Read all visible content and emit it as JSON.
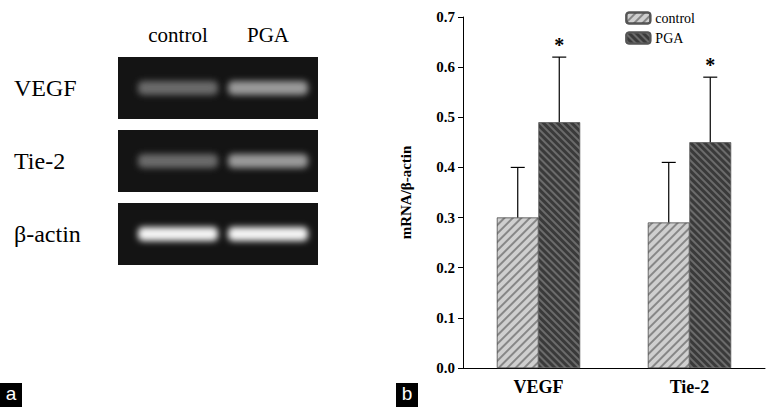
{
  "panel_labels": [
    "a",
    "b"
  ],
  "gel": {
    "columns": [
      "control",
      "PGA"
    ],
    "rows": [
      "VEGF",
      "Tie-2",
      "β-actin"
    ]
  },
  "chart_data": {
    "type": "bar",
    "categories": [
      "VEGF",
      "Tie-2"
    ],
    "y_label": "mRNA/β-actin",
    "series": [
      {
        "name": "control",
        "color": "#cfcfcf",
        "values": [
          0.3,
          0.29
        ],
        "errors": [
          0.1,
          0.12
        ]
      },
      {
        "name": "PGA",
        "color": "#3a3a3a",
        "values": [
          0.49,
          0.45
        ],
        "errors": [
          0.13,
          0.13
        ]
      }
    ],
    "annotations": [
      {
        "series": "PGA",
        "category": "VEGF",
        "text": "*"
      },
      {
        "series": "PGA",
        "category": "Tie-2",
        "text": "*"
      }
    ],
    "ylim": [
      0,
      0.7
    ],
    "yticks": [
      {
        "value": 0,
        "label": "0.0"
      },
      0.1,
      0.2,
      0.3,
      0.4,
      0.5,
      0.6,
      0.7
    ],
    "legend": "upper right",
    "grid": false
  }
}
